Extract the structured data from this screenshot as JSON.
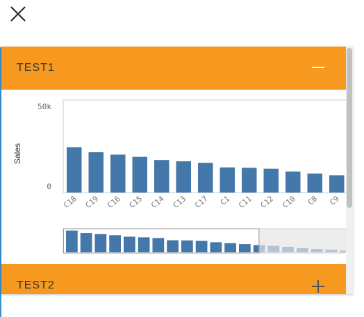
{
  "window": {
    "close_icon": "close-x-icon"
  },
  "accordion": [
    {
      "title": "TEST1",
      "expanded": true,
      "toggle_icon": "minus-icon"
    },
    {
      "title": "TEST2",
      "expanded": false,
      "toggle_icon": "plus-icon"
    }
  ],
  "colors": {
    "header": "#f7991e",
    "bar": "#4477aa",
    "accent_edge": "#3b8fd0"
  },
  "chart_data": {
    "type": "bar",
    "ylabel": "Sales",
    "xlabel": "",
    "ylim": [
      0,
      50000
    ],
    "yticks": [
      "50k",
      "0"
    ],
    "categories": [
      "C18",
      "C19",
      "C16",
      "C15",
      "C14",
      "C13",
      "C17",
      "C1",
      "C11",
      "C12",
      "C10",
      "C8",
      "C9"
    ],
    "values": [
      24500,
      21800,
      20500,
      19300,
      17600,
      16900,
      16100,
      13600,
      13400,
      12900,
      11400,
      10300,
      9300
    ],
    "grid": false,
    "scrollbar_navigator": {
      "values": [
        24500,
        21800,
        20500,
        19300,
        17600,
        16900,
        16100,
        13600,
        13400,
        12900,
        11400,
        10300,
        9300,
        8100,
        7400,
        6300,
        4800,
        3900,
        2900,
        2000
      ],
      "visible_fraction": 0.67
    }
  }
}
